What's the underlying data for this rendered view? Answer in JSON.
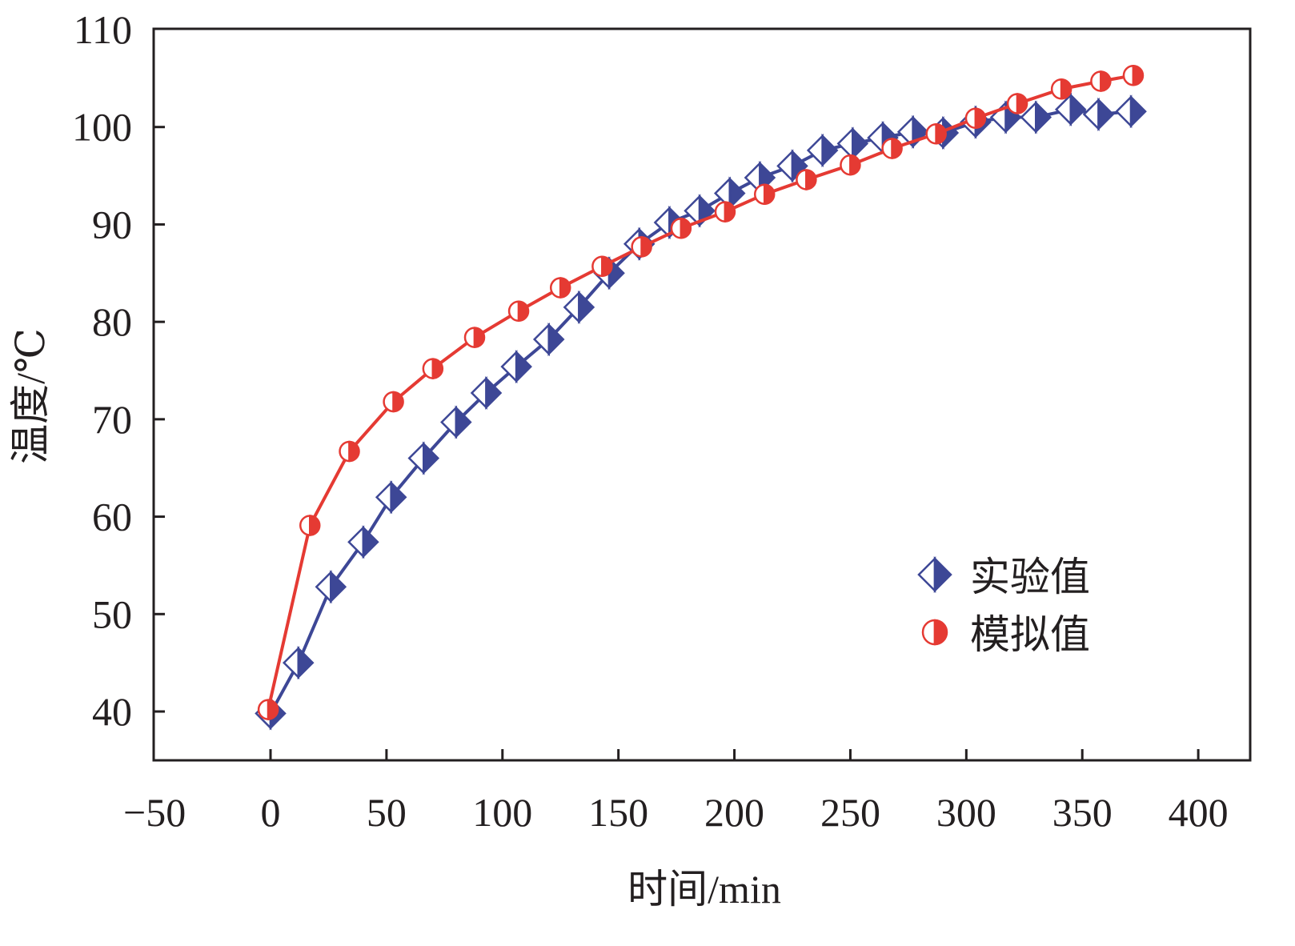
{
  "chart_data": {
    "type": "line",
    "xlabel": "时间/min",
    "ylabel": "温度/℃",
    "xlim": [
      -50,
      400
    ],
    "ylim": [
      40,
      110
    ],
    "xticks": [
      -50,
      0,
      50,
      100,
      150,
      200,
      250,
      300,
      350,
      400
    ],
    "yticks": [
      40,
      50,
      60,
      70,
      80,
      90,
      100,
      110
    ],
    "xtick_labels": [
      "−50",
      "0",
      "50",
      "100",
      "150",
      "200",
      "250",
      "300",
      "350",
      "400"
    ],
    "ytick_labels": [
      "40",
      "50",
      "60",
      "70",
      "80",
      "90",
      "100",
      "110"
    ],
    "grid": false,
    "legend_position": "lower-right",
    "series": [
      {
        "name": "实验值",
        "color": "#3d4796",
        "marker": "half-filled-diamond",
        "x": [
          0,
          12,
          26,
          40,
          52,
          66,
          80,
          93,
          106,
          120,
          133,
          146,
          159,
          172,
          185,
          198,
          211,
          225,
          238,
          251,
          264,
          277,
          290,
          304,
          317,
          330,
          345,
          357,
          371
        ],
        "y": [
          39.8,
          45,
          52.8,
          57.4,
          62,
          66,
          69.7,
          72.7,
          75.4,
          78.2,
          81.5,
          85,
          88,
          90.2,
          91.4,
          93.2,
          94.8,
          96,
          97.6,
          98.3,
          98.9,
          99.5,
          99.4,
          100.5,
          101,
          101,
          101.8,
          101.3,
          101.6
        ]
      },
      {
        "name": "模拟值",
        "color": "#e53a33",
        "marker": "half-filled-circle",
        "x": [
          -1,
          17,
          34,
          53,
          70,
          88,
          107,
          125,
          143,
          160,
          177,
          196,
          213,
          231,
          250,
          268,
          287,
          304,
          322,
          341,
          358,
          372
        ],
        "y": [
          40.2,
          59.1,
          66.7,
          71.8,
          75.2,
          78.4,
          81.1,
          83.5,
          85.7,
          87.7,
          89.6,
          91.3,
          93.1,
          94.6,
          96.1,
          97.8,
          99.3,
          100.9,
          102.4,
          103.9,
          104.7,
          105.3
        ]
      }
    ]
  }
}
